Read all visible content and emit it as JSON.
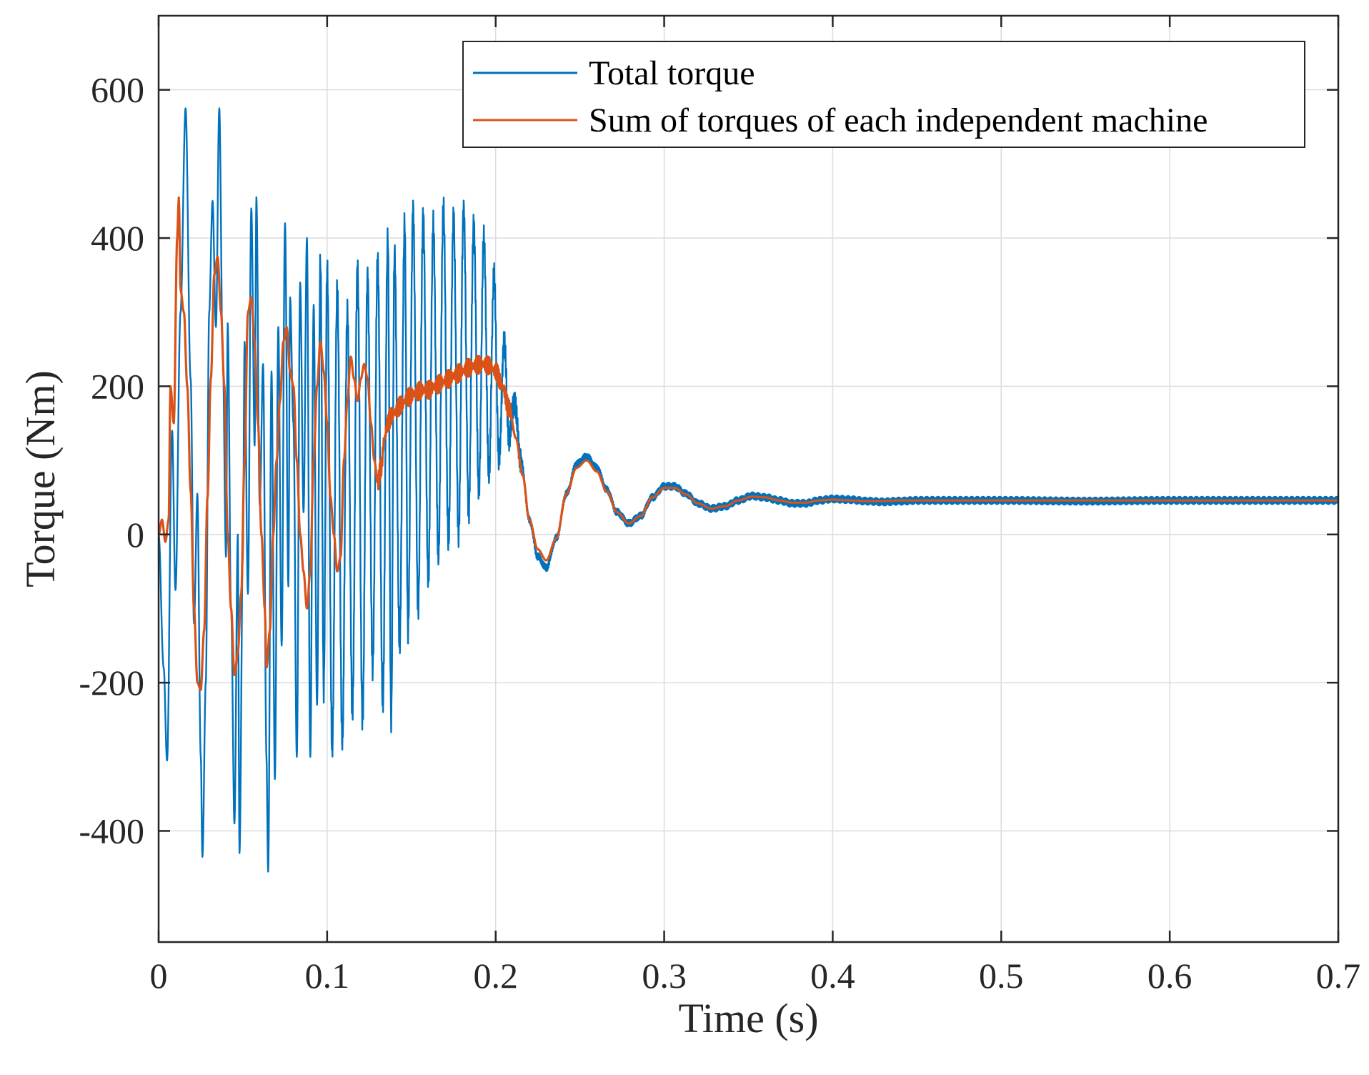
{
  "chart_data": {
    "type": "line",
    "title": "",
    "xlabel": "Time (s)",
    "ylabel": "Torque (Nm)",
    "xlim": [
      0,
      0.7
    ],
    "ylim": [
      -550,
      700
    ],
    "xticks": [
      0,
      0.1,
      0.2,
      0.3,
      0.4,
      0.5,
      0.6,
      0.7
    ],
    "xtick_labels": [
      "0",
      "0.1",
      "0.2",
      "0.3",
      "0.4",
      "0.5",
      "0.6",
      "0.7"
    ],
    "yticks": [
      -400,
      -200,
      0,
      200,
      400,
      600
    ],
    "ytick_labels": [
      "-400",
      "-200",
      "0",
      "200",
      "400",
      "600"
    ],
    "grid": true,
    "legend_position": "top-right",
    "series": [
      {
        "name": "Total torque",
        "color": "#0072BD",
        "style": "oscillation",
        "keypoints": [
          [
            0,
            0
          ],
          [
            0.003,
            -180
          ],
          [
            0.005,
            -305
          ],
          [
            0.008,
            140
          ],
          [
            0.01,
            -75
          ],
          [
            0.013,
            300
          ],
          [
            0.016,
            575
          ],
          [
            0.019,
            210
          ],
          [
            0.021,
            -120
          ],
          [
            0.023,
            55
          ],
          [
            0.025,
            -300
          ],
          [
            0.026,
            -435
          ],
          [
            0.028,
            -200
          ],
          [
            0.03,
            300
          ],
          [
            0.032,
            450
          ],
          [
            0.034,
            280
          ],
          [
            0.036,
            575
          ],
          [
            0.038,
            250
          ],
          [
            0.04,
            -30
          ],
          [
            0.041,
            285
          ],
          [
            0.043,
            -100
          ],
          [
            0.045,
            -390
          ],
          [
            0.047,
            0
          ],
          [
            0.048,
            -430
          ],
          [
            0.05,
            -30
          ],
          [
            0.051,
            260
          ],
          [
            0.053,
            -80
          ],
          [
            0.055,
            440
          ],
          [
            0.057,
            120
          ],
          [
            0.058,
            455
          ],
          [
            0.06,
            40
          ],
          [
            0.062,
            230
          ],
          [
            0.064,
            -300
          ],
          [
            0.065,
            -455
          ],
          [
            0.067,
            220
          ],
          [
            0.069,
            -330
          ],
          [
            0.071,
            280
          ],
          [
            0.073,
            -150
          ],
          [
            0.075,
            420
          ],
          [
            0.077,
            -70
          ],
          [
            0.078,
            320
          ],
          [
            0.08,
            150
          ],
          [
            0.082,
            -300
          ],
          [
            0.084,
            340
          ],
          [
            0.086,
            30
          ],
          [
            0.088,
            400
          ],
          [
            0.09,
            -300
          ],
          [
            0.092,
            310
          ],
          [
            0.094,
            -230
          ],
          [
            0.096,
            370
          ],
          [
            0.098,
            -210
          ],
          [
            0.1,
            360
          ],
          [
            0.103,
            -290
          ],
          [
            0.106,
            330
          ],
          [
            0.109,
            -280
          ],
          [
            0.112,
            300
          ],
          [
            0.115,
            -240
          ],
          [
            0.118,
            360
          ],
          [
            0.121,
            -250
          ],
          [
            0.124,
            350
          ],
          [
            0.127,
            -180
          ],
          [
            0.13,
            370
          ],
          [
            0.133,
            -230
          ],
          [
            0.136,
            400
          ],
          [
            0.138,
            -250
          ],
          [
            0.14,
            380
          ],
          [
            0.143,
            -150
          ],
          [
            0.146,
            420
          ],
          [
            0.148,
            -130
          ],
          [
            0.151,
            440
          ],
          [
            0.154,
            -100
          ],
          [
            0.157,
            430
          ],
          [
            0.16,
            -60
          ],
          [
            0.163,
            420
          ],
          [
            0.166,
            -30
          ],
          [
            0.169,
            440
          ],
          [
            0.172,
            -10
          ],
          [
            0.175,
            430
          ],
          [
            0.178,
            0
          ],
          [
            0.181,
            440
          ],
          [
            0.184,
            30
          ],
          [
            0.187,
            420
          ],
          [
            0.19,
            60
          ],
          [
            0.193,
            400
          ],
          [
            0.196,
            80
          ],
          [
            0.199,
            350
          ],
          [
            0.202,
            100
          ],
          [
            0.205,
            260
          ],
          [
            0.208,
            130
          ],
          [
            0.211,
            180
          ],
          [
            0.215,
            100
          ],
          [
            0.22,
            20
          ],
          [
            0.225,
            -30
          ],
          [
            0.23,
            -45
          ],
          [
            0.236,
            -5
          ],
          [
            0.242,
            55
          ],
          [
            0.248,
            95
          ],
          [
            0.254,
            105
          ],
          [
            0.26,
            90
          ],
          [
            0.266,
            60
          ],
          [
            0.272,
            30
          ],
          [
            0.279,
            15
          ],
          [
            0.286,
            25
          ],
          [
            0.293,
            50
          ],
          [
            0.3,
            65
          ],
          [
            0.306,
            65
          ],
          [
            0.313,
            55
          ],
          [
            0.32,
            42
          ],
          [
            0.328,
            35
          ],
          [
            0.336,
            38
          ],
          [
            0.344,
            46
          ],
          [
            0.352,
            52
          ],
          [
            0.36,
            50
          ],
          [
            0.368,
            46
          ],
          [
            0.376,
            42
          ],
          [
            0.384,
            42
          ],
          [
            0.392,
            46
          ],
          [
            0.4,
            48
          ],
          [
            0.41,
            47
          ],
          [
            0.42,
            45
          ],
          [
            0.43,
            44
          ],
          [
            0.44,
            45
          ],
          [
            0.45,
            46
          ],
          [
            0.5,
            46
          ],
          [
            0.55,
            45
          ],
          [
            0.6,
            46
          ],
          [
            0.65,
            46
          ],
          [
            0.7,
            46
          ]
        ]
      },
      {
        "name": "Sum of torques of each independent machine",
        "color": "#D95319",
        "style": "smooth",
        "keypoints": [
          [
            0,
            0
          ],
          [
            0.002,
            20
          ],
          [
            0.004,
            -10
          ],
          [
            0.006,
            20
          ],
          [
            0.007,
            200
          ],
          [
            0.009,
            150
          ],
          [
            0.011,
            400
          ],
          [
            0.012,
            455
          ],
          [
            0.013,
            330
          ],
          [
            0.015,
            300
          ],
          [
            0.017,
            200
          ],
          [
            0.019,
            60
          ],
          [
            0.021,
            -100
          ],
          [
            0.023,
            -200
          ],
          [
            0.025,
            -210
          ],
          [
            0.027,
            -130
          ],
          [
            0.029,
            50
          ],
          [
            0.031,
            210
          ],
          [
            0.033,
            350
          ],
          [
            0.035,
            375
          ],
          [
            0.037,
            300
          ],
          [
            0.039,
            200
          ],
          [
            0.041,
            0
          ],
          [
            0.043,
            -100
          ],
          [
            0.045,
            -190
          ],
          [
            0.047,
            -160
          ],
          [
            0.049,
            -80
          ],
          [
            0.051,
            100
          ],
          [
            0.053,
            300
          ],
          [
            0.055,
            320
          ],
          [
            0.057,
            260
          ],
          [
            0.059,
            150
          ],
          [
            0.061,
            0
          ],
          [
            0.063,
            -100
          ],
          [
            0.064,
            -180
          ],
          [
            0.066,
            -130
          ],
          [
            0.068,
            0
          ],
          [
            0.07,
            100
          ],
          [
            0.072,
            180
          ],
          [
            0.074,
            260
          ],
          [
            0.076,
            280
          ],
          [
            0.078,
            220
          ],
          [
            0.08,
            200
          ],
          [
            0.082,
            100
          ],
          [
            0.084,
            0
          ],
          [
            0.086,
            -50
          ],
          [
            0.088,
            -100
          ],
          [
            0.09,
            -50
          ],
          [
            0.092,
            100
          ],
          [
            0.094,
            200
          ],
          [
            0.096,
            260
          ],
          [
            0.098,
            220
          ],
          [
            0.1,
            150
          ],
          [
            0.102,
            50
          ],
          [
            0.104,
            0
          ],
          [
            0.106,
            -50
          ],
          [
            0.108,
            -30
          ],
          [
            0.11,
            100
          ],
          [
            0.112,
            180
          ],
          [
            0.114,
            240
          ],
          [
            0.116,
            210
          ],
          [
            0.118,
            180
          ],
          [
            0.12,
            210
          ],
          [
            0.122,
            230
          ],
          [
            0.124,
            210
          ],
          [
            0.126,
            150
          ],
          [
            0.128,
            100
          ],
          [
            0.13,
            70
          ],
          [
            0.132,
            90
          ],
          [
            0.134,
            130
          ],
          [
            0.136,
            150
          ],
          [
            0.138,
            160
          ],
          [
            0.14,
            165
          ],
          [
            0.144,
            175
          ],
          [
            0.148,
            185
          ],
          [
            0.152,
            190
          ],
          [
            0.156,
            195
          ],
          [
            0.16,
            195
          ],
          [
            0.164,
            200
          ],
          [
            0.168,
            205
          ],
          [
            0.172,
            210
          ],
          [
            0.176,
            215
          ],
          [
            0.18,
            220
          ],
          [
            0.184,
            225
          ],
          [
            0.188,
            228
          ],
          [
            0.192,
            230
          ],
          [
            0.196,
            228
          ],
          [
            0.2,
            220
          ],
          [
            0.204,
            200
          ],
          [
            0.208,
            170
          ],
          [
            0.212,
            130
          ],
          [
            0.216,
            80
          ],
          [
            0.22,
            20
          ],
          [
            0.225,
            -20
          ],
          [
            0.23,
            -35
          ],
          [
            0.236,
            -5
          ],
          [
            0.242,
            55
          ],
          [
            0.248,
            90
          ],
          [
            0.254,
            100
          ],
          [
            0.26,
            85
          ],
          [
            0.266,
            58
          ],
          [
            0.272,
            30
          ],
          [
            0.279,
            15
          ],
          [
            0.286,
            25
          ],
          [
            0.293,
            50
          ],
          [
            0.3,
            63
          ],
          [
            0.306,
            63
          ],
          [
            0.313,
            54
          ],
          [
            0.32,
            42
          ],
          [
            0.328,
            35
          ],
          [
            0.336,
            38
          ],
          [
            0.344,
            46
          ],
          [
            0.352,
            51
          ],
          [
            0.36,
            50
          ],
          [
            0.368,
            46
          ],
          [
            0.376,
            43
          ],
          [
            0.384,
            43
          ],
          [
            0.392,
            46
          ],
          [
            0.4,
            47
          ],
          [
            0.41,
            46
          ],
          [
            0.42,
            45
          ],
          [
            0.43,
            45
          ],
          [
            0.44,
            46
          ],
          [
            0.45,
            46
          ],
          [
            0.5,
            46
          ],
          [
            0.55,
            46
          ],
          [
            0.6,
            46
          ],
          [
            0.65,
            46
          ],
          [
            0.7,
            46
          ]
        ]
      }
    ]
  }
}
